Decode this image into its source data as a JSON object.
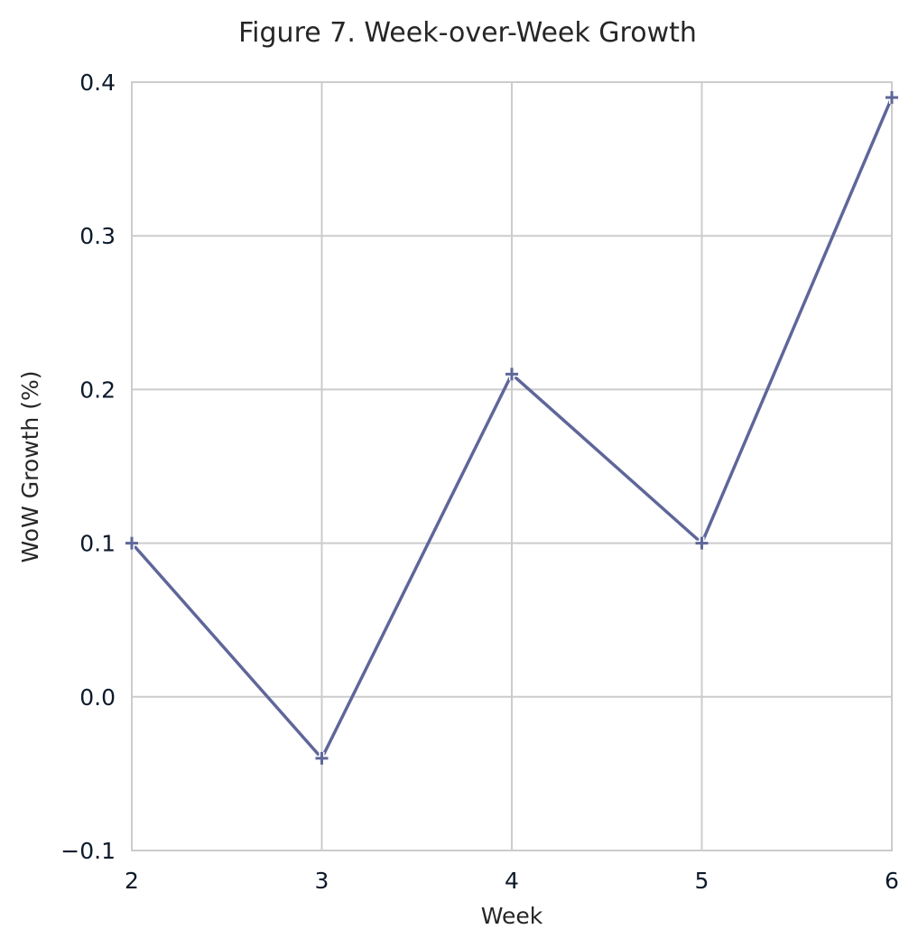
{
  "chart_data": {
    "type": "line",
    "title": "Figure 7. Week-over-Week Growth",
    "xlabel": "Week",
    "ylabel": "WoW Growth (%)",
    "xlim": [
      2,
      6
    ],
    "ylim": [
      -0.1,
      0.4
    ],
    "x_ticks": [
      "2",
      "3",
      "4",
      "5",
      "6"
    ],
    "y_ticks": [
      "−0.1",
      "0.0",
      "0.1",
      "0.2",
      "0.3",
      "0.4"
    ],
    "grid": true,
    "marker": "plus",
    "color": "#5f6699",
    "series": [
      {
        "x": [
          2,
          3,
          4,
          5,
          6
        ],
        "values": [
          0.1,
          -0.04,
          0.21,
          0.1,
          0.39
        ]
      }
    ]
  }
}
